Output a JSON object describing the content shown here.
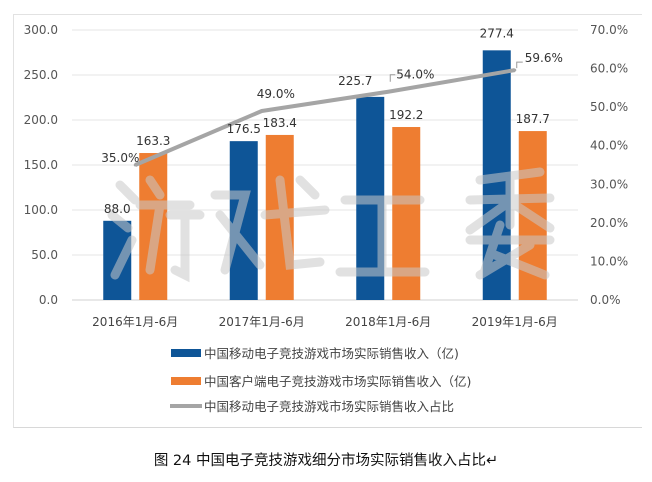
{
  "chart_data": {
    "type": "bar",
    "categories": [
      "2016年1月-6月",
      "2017年1月-6月",
      "2018年1月-6月",
      "2019年1月-6月"
    ],
    "series": [
      {
        "name": "中国移动电子竞技游戏市场实际销售收入（亿)",
        "kind": "bar",
        "axis": "left",
        "color": "#0E5597",
        "values": [
          88.0,
          176.5,
          225.7,
          277.4
        ],
        "labels": [
          "88.0",
          "176.5",
          "225.7",
          "277.4"
        ]
      },
      {
        "name": "中国客户端电子竞技游戏市场实际销售收入（亿)",
        "kind": "bar",
        "axis": "left",
        "color": "#EE7D31",
        "values": [
          163.3,
          183.4,
          192.2,
          187.7
        ],
        "labels": [
          "163.3",
          "183.4",
          "192.2",
          "187.7"
        ]
      },
      {
        "name": "中国移动电子竞技游戏市场实际销售收入占比",
        "kind": "line",
        "axis": "right",
        "color": "#A5A5A5",
        "values": [
          35.0,
          49.0,
          54.0,
          59.6
        ],
        "labels": [
          "35.0%",
          "49.0%",
          "54.0%",
          "59.6%"
        ]
      }
    ],
    "left_axis": {
      "ylim": [
        0,
        300
      ],
      "ticks": [
        "0.0",
        "50.0",
        "100.0",
        "150.0",
        "200.0",
        "250.0",
        "300.0"
      ]
    },
    "right_axis": {
      "ylim": [
        0,
        70
      ],
      "ticks": [
        "0.0%",
        "10.0%",
        "20.0%",
        "30.0%",
        "40.0%",
        "50.0%",
        "60.0%",
        "70.0%"
      ]
    },
    "grid": true,
    "legend": "bottom",
    "watermark": "游戏工委"
  },
  "caption": "图 24  中国电子竞技游戏细分市场实际销售收入占比↵"
}
